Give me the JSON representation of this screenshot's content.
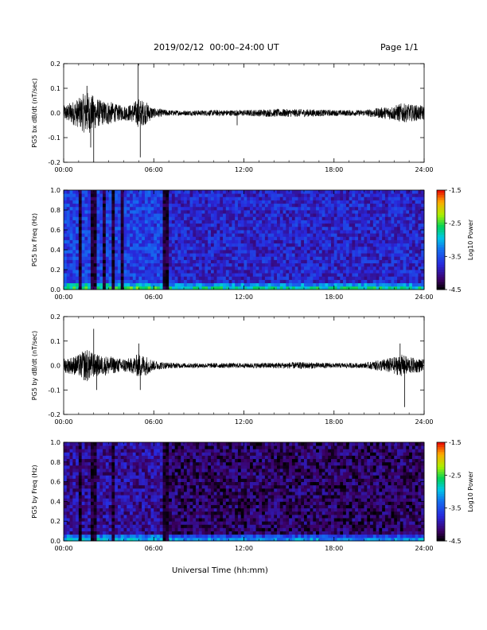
{
  "header": {
    "title": "2019/02/12  00:00–24:00 UT",
    "page": "Page 1/1"
  },
  "xlabel": "Universal Time (hh:mm)",
  "colorbar_label": "Log10 Power",
  "chart_data": [
    {
      "type": "line",
      "ylabel": "PG5 bx dB/dt (nT/sec)",
      "xlim": [
        0,
        24
      ],
      "ylim": [
        -0.2,
        0.2
      ],
      "xticks": [
        "00:00",
        "06:00",
        "12:00",
        "18:00",
        "24:00"
      ],
      "yticks": [
        "-0.2",
        "-0.1",
        "0.0",
        "0.1",
        "0.2"
      ],
      "xtick_values": [
        0,
        6,
        12,
        18,
        24
      ],
      "ytick_values": [
        -0.2,
        -0.1,
        0.0,
        0.1,
        0.2
      ],
      "envelope": {
        "x": [
          0,
          0.5,
          1,
          1.5,
          2,
          2.5,
          3,
          3.5,
          4,
          4.5,
          5,
          5.5,
          6,
          7,
          8,
          10,
          12,
          14,
          16,
          18,
          20,
          22,
          22.5,
          23,
          24
        ],
        "amp": [
          0.03,
          0.045,
          0.06,
          0.09,
          0.07,
          0.05,
          0.05,
          0.035,
          0.03,
          0.035,
          0.06,
          0.045,
          0.02,
          0.012,
          0.01,
          0.012,
          0.012,
          0.016,
          0.016,
          0.012,
          0.012,
          0.03,
          0.04,
          0.035,
          0.03
        ]
      },
      "spikes": [
        {
          "x": 1.55,
          "y": 0.11
        },
        {
          "x": 1.8,
          "y": -0.14
        },
        {
          "x": 2.0,
          "y": -0.2
        },
        {
          "x": 4.95,
          "y": 0.2
        },
        {
          "x": 5.1,
          "y": -0.18
        },
        {
          "x": 11.55,
          "y": -0.05
        }
      ]
    },
    {
      "type": "heatmap",
      "ylabel": "PG5 bx Freq (Hz)",
      "xlim": [
        0,
        24
      ],
      "ylim": [
        0,
        1.0
      ],
      "xticks": [
        "00:00",
        "06:00",
        "12:00",
        "18:00",
        "24:00"
      ],
      "yticks": [
        "0.0",
        "0.2",
        "0.4",
        "0.6",
        "0.8",
        "1.0"
      ],
      "xtick_values": [
        0,
        6,
        12,
        18,
        24
      ],
      "ytick_values": [
        0,
        0.2,
        0.4,
        0.6,
        0.8,
        1.0
      ],
      "zlim": [
        -4.5,
        -1.5
      ],
      "cbar_ticks": [
        "-1.5",
        "-2.5",
        "-3.5",
        "-4.5"
      ],
      "cbar_tick_values": [
        -1.5,
        -2.5,
        -3.5,
        -4.5
      ],
      "background_log_power": -3.8,
      "dark_bands": [
        {
          "x0": 1.0,
          "x1": 1.2
        },
        {
          "x0": 1.9,
          "x1": 2.1
        },
        {
          "x0": 2.6,
          "x1": 2.75
        },
        {
          "x0": 3.25,
          "x1": 3.4
        },
        {
          "x0": 3.85,
          "x1": 4.05
        },
        {
          "x0": 6.7,
          "x1": 6.9
        }
      ]
    },
    {
      "type": "line",
      "ylabel": "PG5 by dB/dt (nT/sec)",
      "xlim": [
        0,
        24
      ],
      "ylim": [
        -0.2,
        0.2
      ],
      "xticks": [
        "00:00",
        "06:00",
        "12:00",
        "18:00",
        "24:00"
      ],
      "yticks": [
        "-0.2",
        "-0.1",
        "0.0",
        "0.1",
        "0.2"
      ],
      "xtick_values": [
        0,
        6,
        12,
        18,
        24
      ],
      "ytick_values": [
        -0.2,
        -0.1,
        0.0,
        0.1,
        0.2
      ],
      "envelope": {
        "x": [
          0,
          0.5,
          1,
          1.5,
          2,
          2.5,
          3,
          3.5,
          4,
          4.5,
          5,
          5.5,
          6,
          7,
          8,
          10,
          12,
          14,
          16,
          18,
          20,
          22,
          22.5,
          23,
          24
        ],
        "amp": [
          0.03,
          0.035,
          0.045,
          0.07,
          0.05,
          0.04,
          0.04,
          0.03,
          0.03,
          0.03,
          0.05,
          0.04,
          0.02,
          0.012,
          0.01,
          0.01,
          0.01,
          0.012,
          0.014,
          0.01,
          0.01,
          0.035,
          0.045,
          0.035,
          0.025
        ]
      },
      "spikes": [
        {
          "x": 2.0,
          "y": 0.15
        },
        {
          "x": 2.2,
          "y": -0.1
        },
        {
          "x": 5.0,
          "y": 0.09
        },
        {
          "x": 5.1,
          "y": -0.1
        },
        {
          "x": 22.4,
          "y": 0.09
        },
        {
          "x": 22.7,
          "y": -0.17
        }
      ]
    },
    {
      "type": "heatmap",
      "ylabel": "PG5 by Freq (Hz)",
      "xlim": [
        0,
        24
      ],
      "ylim": [
        0,
        1.0
      ],
      "xticks": [
        "00:00",
        "06:00",
        "12:00",
        "18:00",
        "24:00"
      ],
      "yticks": [
        "0.0",
        "0.2",
        "0.4",
        "0.6",
        "0.8",
        "1.0"
      ],
      "xtick_values": [
        0,
        6,
        12,
        18,
        24
      ],
      "ytick_values": [
        0,
        0.2,
        0.4,
        0.6,
        0.8,
        1.0
      ],
      "zlim": [
        -4.5,
        -1.5
      ],
      "cbar_ticks": [
        "-1.5",
        "-2.5",
        "-3.5",
        "-4.5"
      ],
      "cbar_tick_values": [
        -1.5,
        -2.5,
        -3.5,
        -4.5
      ],
      "background_log_power": -4.2,
      "dark_bands": [
        {
          "x0": 1.0,
          "x1": 1.2
        },
        {
          "x0": 1.9,
          "x1": 2.1
        },
        {
          "x0": 3.25,
          "x1": 3.4
        },
        {
          "x0": 6.7,
          "x1": 6.9
        }
      ]
    }
  ]
}
